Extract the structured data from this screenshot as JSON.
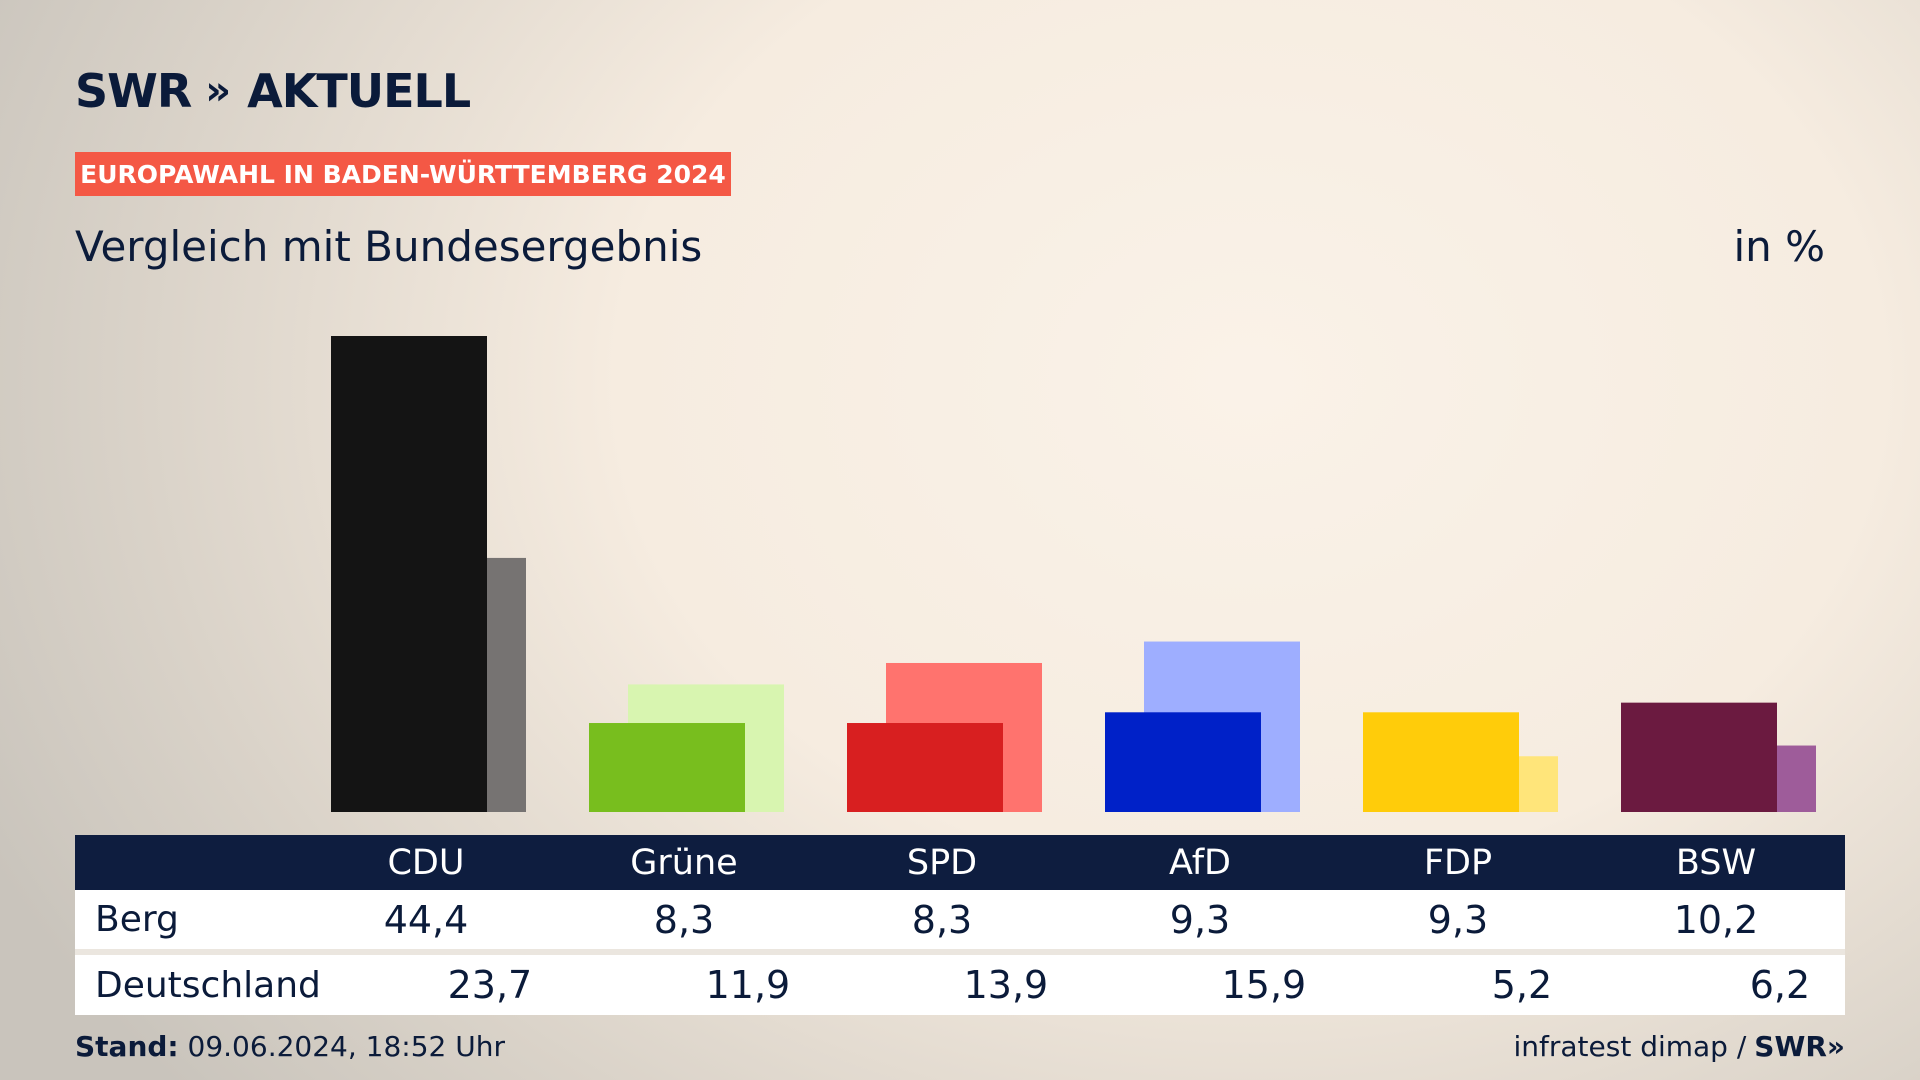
{
  "header": {
    "logo_text": "SWR",
    "logo_chevrons": "»",
    "logo_suffix": "AKTUELL",
    "banner": "EUROPAWAHL IN BADEN-WÜRTTEMBERG 2024",
    "subtitle": "Vergleich mit Bundesergebnis",
    "unit": "in %"
  },
  "chart_data": {
    "type": "bar",
    "categories": [
      "CDU",
      "Grüne",
      "SPD",
      "AfD",
      "FDP",
      "BSW"
    ],
    "series": [
      {
        "name": "Berg",
        "values": [
          44.4,
          8.3,
          8.3,
          9.3,
          9.3,
          10.2
        ],
        "colors": [
          "#141414",
          "#78be1e",
          "#d81f20",
          "#0021c8",
          "#ffcc0a",
          "#6b1a40"
        ]
      },
      {
        "name": "Deutschland",
        "values": [
          23.7,
          11.9,
          13.9,
          15.9,
          5.2,
          6.2
        ],
        "colors": [
          "#767372",
          "#d8f5b0",
          "#ff736e",
          "#9eaeff",
          "#ffe57a",
          "#9e5c9a"
        ]
      }
    ],
    "ylim": [
      0,
      44.4
    ],
    "grid": false,
    "legend": "table-below"
  },
  "table": {
    "header": [
      "CDU",
      "Grüne",
      "SPD",
      "AfD",
      "FDP",
      "BSW"
    ],
    "rows": [
      {
        "label": "Berg",
        "values": [
          "44,4",
          "8,3",
          "8,3",
          "9,3",
          "9,3",
          "10,2"
        ]
      },
      {
        "label": "Deutschland",
        "values": [
          "23,7",
          "11,9",
          "13,9",
          "15,9",
          "5,2",
          "6,2"
        ]
      }
    ]
  },
  "footer": {
    "stand_label": "Stand:",
    "stand_value": "09.06.2024, 18:52 Uhr",
    "source": "infratest dimap /",
    "source_logo": "SWR»"
  }
}
